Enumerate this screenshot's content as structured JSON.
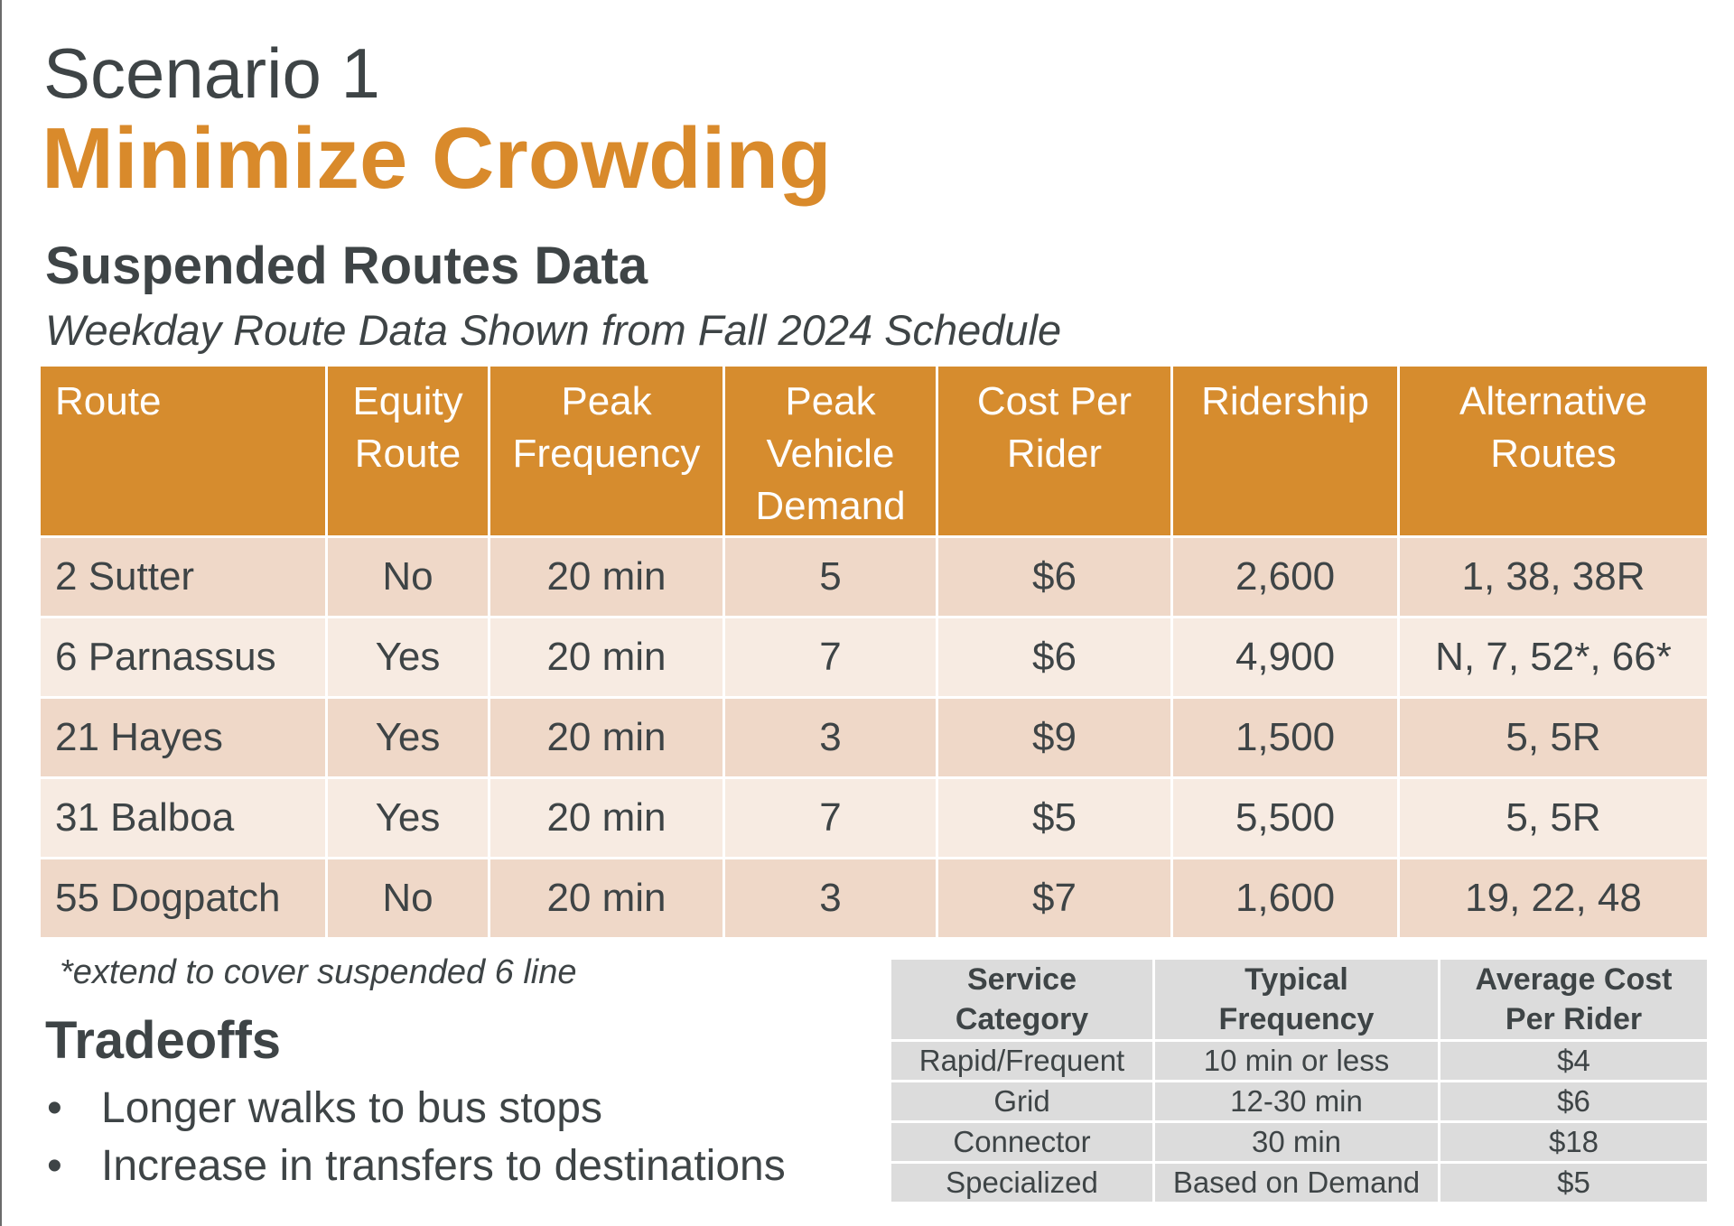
{
  "header": {
    "scenario": "Scenario 1",
    "title": "Minimize Crowding"
  },
  "suspended": {
    "title": "Suspended Routes Data",
    "subtitle": "Weekday Route Data Shown from Fall 2024 Schedule",
    "columns": [
      [
        "Route"
      ],
      [
        "Equity",
        "Route"
      ],
      [
        "Peak",
        "Frequency"
      ],
      [
        "Peak",
        "Vehicle",
        "Demand"
      ],
      [
        "Cost Per",
        "Rider"
      ],
      [
        "Ridership"
      ],
      [
        "Alternative",
        "Routes"
      ]
    ],
    "rows": [
      [
        "2 Sutter",
        "No",
        "20 min",
        "5",
        "$6",
        "2,600",
        "1, 38, 38R"
      ],
      [
        "6 Parnassus",
        "Yes",
        "20 min",
        "7",
        "$6",
        "4,900",
        "N, 7, 52*, 66*"
      ],
      [
        "21 Hayes",
        "Yes",
        "20 min",
        "3",
        "$9",
        "1,500",
        "5, 5R"
      ],
      [
        "31 Balboa",
        "Yes",
        "20 min",
        "7",
        "$5",
        "5,500",
        "5, 5R"
      ],
      [
        "55 Dogpatch",
        "No",
        "20 min",
        "3",
        "$7",
        "1,600",
        "19, 22, 48"
      ]
    ],
    "footnote": "*extend to cover suspended 6 line"
  },
  "tradeoffs": {
    "title": "Tradeoffs",
    "bullet": "•",
    "items": [
      "Longer walks to bus stops",
      "Increase in transfers to destinations"
    ]
  },
  "service": {
    "columns": [
      [
        "Service",
        "Category"
      ],
      [
        "Typical",
        "Frequency"
      ],
      [
        "Average Cost",
        "Per Rider"
      ]
    ],
    "rows": [
      [
        "Rapid/Frequent",
        "10 min or less",
        "$4"
      ],
      [
        "Grid",
        "12-30 min",
        "$6"
      ],
      [
        "Connector",
        "30 min",
        "$18"
      ],
      [
        "Specialized",
        "Based on Demand",
        "$5"
      ]
    ]
  },
  "colors": {
    "accent": "#d98a2b",
    "header_bg": "#d68c2e",
    "row_dark": "#efd8c8",
    "row_light": "#f7ebe2",
    "text": "#3e4446",
    "service_bg": "#dcdcdc"
  }
}
